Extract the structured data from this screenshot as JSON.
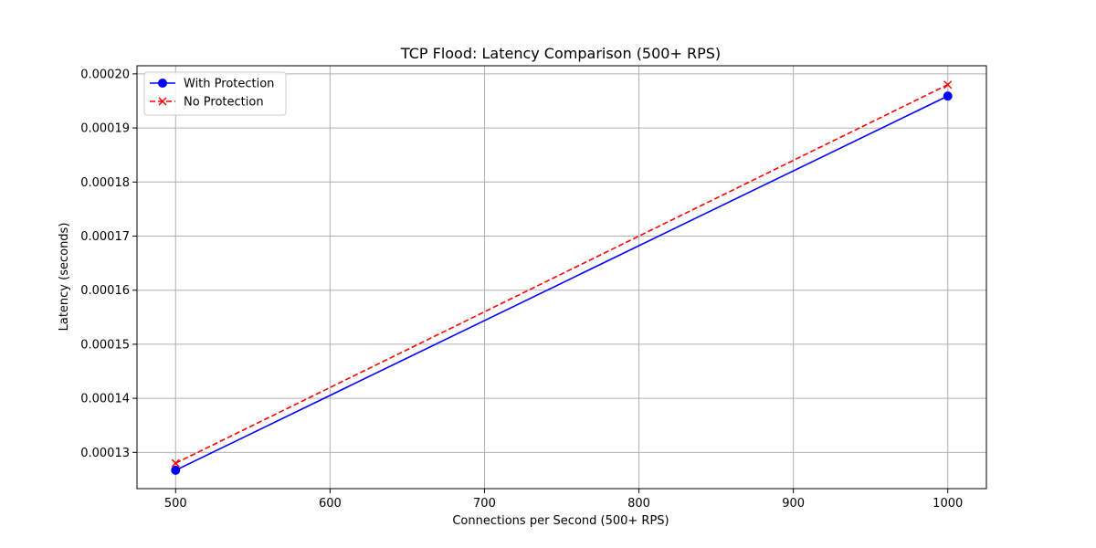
{
  "chart_data": {
    "type": "line",
    "title": "TCP Flood: Latency Comparison (500+ RPS)",
    "xlabel": "Connections per Second (500+ RPS)",
    "ylabel": "Latency (seconds)",
    "x": [
      500,
      1000
    ],
    "xlim": [
      475,
      1025
    ],
    "ylim": [
      0.0001233,
      0.0002015
    ],
    "xticks": [
      500,
      600,
      700,
      800,
      900,
      1000
    ],
    "xtick_labels": [
      "500",
      "600",
      "700",
      "800",
      "900",
      "1000"
    ],
    "yticks": [
      0.00013,
      0.00014,
      0.00015,
      0.00016,
      0.00017,
      0.00018,
      0.00019,
      0.0002
    ],
    "ytick_labels": [
      "0.00013",
      "0.00014",
      "0.00015",
      "0.00016",
      "0.00017",
      "0.00018",
      "0.00019",
      "0.00020"
    ],
    "grid": true,
    "legend_position": "top-left",
    "series": [
      {
        "name": "With Protection",
        "values": [
          0.0001267,
          0.0001959
        ],
        "color": "#0000ff",
        "line_style": "solid",
        "marker": "circle"
      },
      {
        "name": "No Protection",
        "values": [
          0.000128,
          0.000198
        ],
        "color": "#ff0000",
        "line_style": "dashed",
        "marker": "x"
      }
    ]
  }
}
